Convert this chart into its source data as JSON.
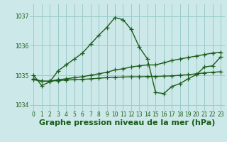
{
  "title": "Graphe pression niveau de la mer (hPa)",
  "bg_color": "#cce8e8",
  "grid_color": "#99cccc",
  "line_color": "#1a5c1a",
  "xlim": [
    -0.5,
    23.5
  ],
  "ylim": [
    1033.8,
    1037.4
  ],
  "yticks": [
    1034,
    1035,
    1036,
    1037
  ],
  "xticks": [
    0,
    1,
    2,
    3,
    4,
    5,
    6,
    7,
    8,
    9,
    10,
    11,
    12,
    13,
    14,
    15,
    16,
    17,
    18,
    19,
    20,
    21,
    22,
    23
  ],
  "line1": {
    "x": [
      0,
      1,
      2,
      3,
      4,
      5,
      6,
      7,
      8,
      9,
      10,
      11,
      12,
      13,
      14,
      15,
      16,
      17,
      18,
      19,
      20,
      21,
      22,
      23
    ],
    "y": [
      1035.0,
      1034.65,
      1034.78,
      1035.15,
      1035.35,
      1035.55,
      1035.75,
      1036.05,
      1036.35,
      1036.62,
      1036.95,
      1036.88,
      1036.55,
      1035.95,
      1035.55,
      1034.42,
      1034.38,
      1034.62,
      1034.72,
      1034.88,
      1035.02,
      1035.28,
      1035.32,
      1035.62
    ]
  },
  "line2": {
    "x": [
      0,
      1,
      2,
      3,
      4,
      5,
      6,
      7,
      8,
      9,
      10,
      11,
      12,
      13,
      14,
      15,
      16,
      17,
      18,
      19,
      20,
      21,
      22,
      23
    ],
    "y": [
      1034.88,
      1034.8,
      1034.8,
      1034.85,
      1034.88,
      1034.92,
      1034.95,
      1035.0,
      1035.05,
      1035.1,
      1035.18,
      1035.22,
      1035.28,
      1035.32,
      1035.35,
      1035.35,
      1035.42,
      1035.5,
      1035.55,
      1035.6,
      1035.65,
      1035.7,
      1035.75,
      1035.78
    ]
  },
  "line3": {
    "x": [
      0,
      1,
      2,
      3,
      4,
      5,
      6,
      7,
      8,
      9,
      10,
      11,
      12,
      13,
      14,
      15,
      16,
      17,
      18,
      19,
      20,
      21,
      22,
      23
    ],
    "y": [
      1034.85,
      1034.8,
      1034.8,
      1034.82,
      1034.84,
      1034.85,
      1034.86,
      1034.88,
      1034.9,
      1034.92,
      1034.93,
      1034.94,
      1034.95,
      1034.95,
      1034.96,
      1034.96,
      1034.97,
      1034.98,
      1035.0,
      1035.02,
      1035.05,
      1035.08,
      1035.1,
      1035.12
    ]
  },
  "marker": "+",
  "marker_size": 4,
  "linewidth": 1.0,
  "title_fontsize": 8,
  "tick_fontsize": 5.5
}
